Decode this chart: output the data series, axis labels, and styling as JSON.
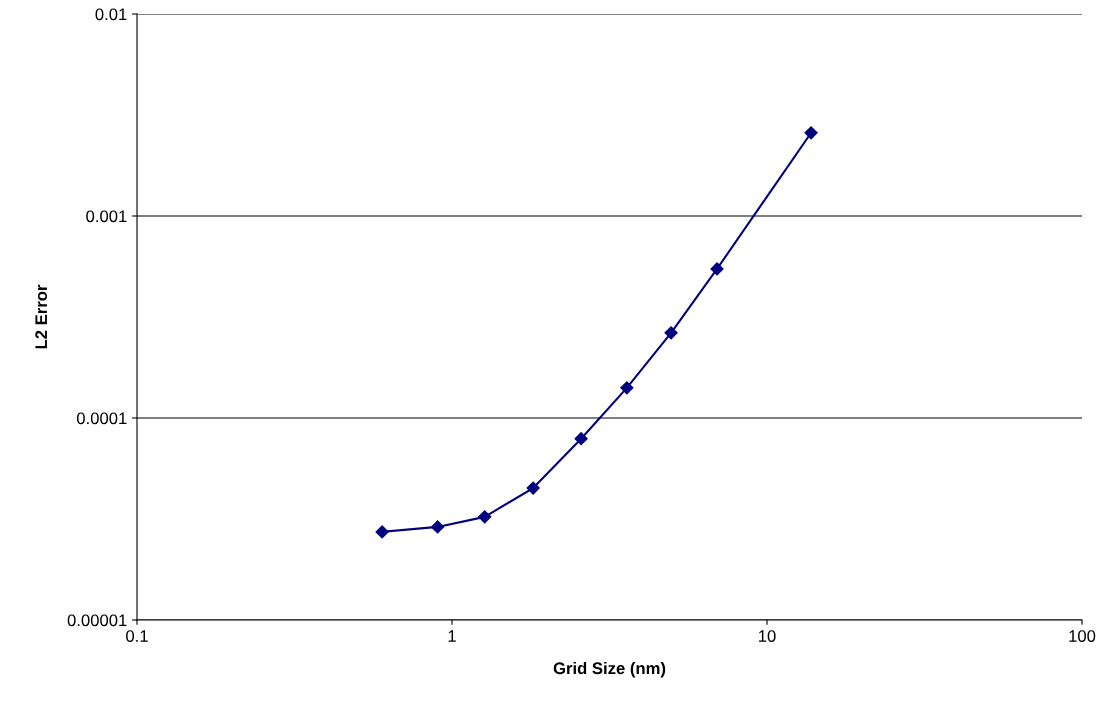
{
  "chart_data": {
    "type": "line",
    "xlabel": "Grid Size (nm)",
    "ylabel": "L2 Error",
    "log": "xy",
    "xlim": [
      0.1,
      100
    ],
    "ylim": [
      1e-05,
      0.01
    ],
    "xticks": [
      0.1,
      1,
      10,
      100
    ],
    "yticks": [
      {
        "value": 1e-05,
        "label": "0.00001"
      },
      0.0001,
      0.001,
      0.01
    ],
    "grid": "y",
    "marker": "diamond",
    "line_style": "solid",
    "series": [
      {
        "color": "#000080",
        "x": [
          0.6,
          0.9,
          1.27,
          1.81,
          2.57,
          3.59,
          4.96,
          6.94,
          13.8
        ],
        "values": [
          2.73e-05,
          2.89e-05,
          3.24e-05,
          4.5e-05,
          7.9e-05,
          0.000141,
          0.000264,
          0.000547,
          0.00258
        ]
      }
    ]
  }
}
